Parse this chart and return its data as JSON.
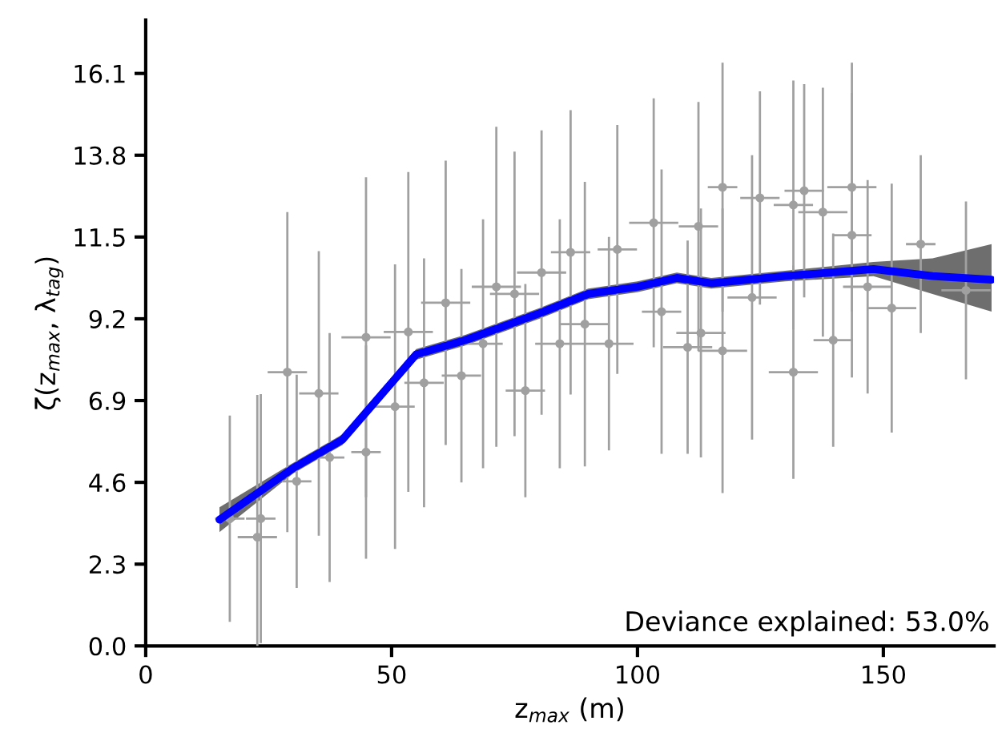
{
  "chart_data": {
    "type": "scatter",
    "xlabel": "z$_{max}$ (m)",
    "ylabel": "ζ(z$_{max}$, λ$_{tag}$)",
    "xlim": [
      0,
      172.5
    ],
    "ylim": [
      0,
      17.6
    ],
    "xticks": [
      0,
      50,
      100,
      150
    ],
    "yticks": [
      {
        "value": 0,
        "label": "0.0"
      },
      2.3,
      4.6,
      6.9,
      9.2,
      11.5,
      13.8,
      16.1
    ],
    "grid": false,
    "legend": false,
    "annotations": [
      "Deviance explained: 53.0%"
    ],
    "series": [
      {
        "marker": "circle",
        "color": "#a0a0a0",
        "x": [
          17.1,
          22.7,
          23.4,
          28.8,
          30.7,
          35.2,
          37.4,
          44.8,
          44.8,
          50.7,
          53.4,
          56.6,
          61,
          64.2,
          71.3,
          68.6,
          75,
          77.2,
          80.5,
          86.4,
          84.2,
          89.3,
          95.9,
          94.2,
          103.3,
          104.9,
          110.2,
          112.4,
          117.3,
          117.3,
          124.9,
          123.3,
          131.7,
          131.7,
          133.9,
          137.7,
          143.6,
          143.6,
          146.8,
          151.7,
          157.6,
          166.8,
          139.8,
          112.9
        ],
        "values": [
          3.58,
          3.06,
          3.58,
          7.7,
          4.63,
          7.1,
          5.3,
          8.68,
          5.45,
          6.73,
          8.83,
          7.4,
          9.65,
          7.6,
          10.1,
          8.5,
          9.9,
          7.18,
          10.5,
          11.07,
          8.5,
          9.05,
          11.15,
          8.5,
          11.9,
          9.4,
          8.4,
          11.8,
          12.9,
          8.3,
          12.6,
          9.8,
          12.4,
          7.7,
          12.8,
          12.2,
          12.9,
          11.55,
          10.1,
          9.5,
          11.3,
          10.0,
          8.6,
          8.8
        ],
        "errors": [
          2.9,
          4.0,
          3.5,
          4.5,
          3.0,
          4.0,
          3.5,
          4.5,
          3.0,
          4.0,
          4.5,
          3.5,
          4.0,
          3.0,
          4.5,
          3.5,
          4.0,
          3.0,
          4.0,
          4.0,
          3.5,
          4.0,
          3.5,
          3.0,
          3.5,
          4.0,
          3.0,
          3.5,
          3.5,
          4.0,
          3.0,
          4.0,
          3.5,
          3.0,
          3.0,
          3.5,
          3.5,
          4.0,
          3.0,
          3.5,
          2.5,
          2.5,
          3.0,
          3.5
        ],
        "xerrors": [
          3,
          4,
          3,
          4,
          3,
          4,
          3,
          5,
          3,
          4,
          5,
          4,
          5,
          4,
          5,
          4,
          5,
          4,
          5,
          4,
          5,
          5,
          4,
          5,
          5,
          4,
          5,
          4,
          3,
          5,
          4,
          5,
          4,
          5,
          4,
          5,
          5,
          4,
          5,
          5,
          3,
          5,
          4,
          5
        ]
      },
      {
        "type": "line",
        "color": "#0000ff",
        "x": [
          15,
          30,
          40,
          50,
          55,
          65,
          80,
          90,
          100,
          108,
          115,
          130,
          148,
          160,
          172
        ],
        "values": [
          3.55,
          5.0,
          5.8,
          7.4,
          8.2,
          8.6,
          9.35,
          9.9,
          10.1,
          10.35,
          10.2,
          10.4,
          10.6,
          10.4,
          10.3
        ],
        "lower": [
          3.2,
          4.85,
          5.65,
          7.25,
          8.05,
          8.45,
          9.2,
          9.75,
          9.95,
          10.2,
          10.05,
          10.25,
          10.4,
          9.9,
          9.4
        ],
        "upper": [
          3.9,
          5.15,
          5.95,
          7.55,
          8.35,
          8.75,
          9.5,
          10.05,
          10.25,
          10.5,
          10.35,
          10.55,
          10.8,
          10.9,
          11.3
        ]
      }
    ]
  }
}
